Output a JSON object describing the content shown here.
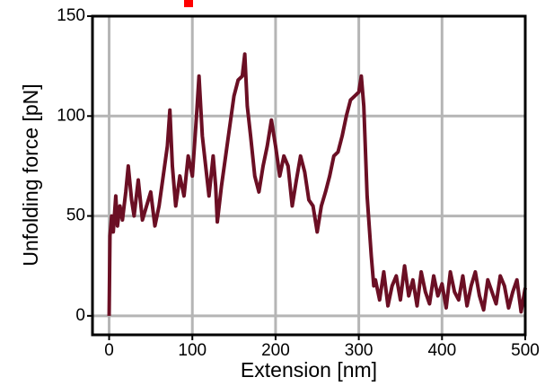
{
  "chart_data": {
    "type": "line",
    "xlabel": "Extension [nm]",
    "ylabel": "Unfolding force [pN]",
    "x": [
      0,
      1,
      3,
      5,
      8,
      10,
      13,
      16,
      20,
      23,
      27,
      30,
      35,
      40,
      45,
      50,
      55,
      60,
      65,
      70,
      73,
      76,
      80,
      85,
      90,
      95,
      100,
      105,
      108,
      112,
      116,
      120,
      125,
      128,
      130,
      135,
      140,
      145,
      150,
      155,
      160,
      163,
      166,
      170,
      175,
      180,
      185,
      190,
      195,
      200,
      205,
      210,
      215,
      220,
      225,
      230,
      235,
      240,
      245,
      250,
      255,
      260,
      265,
      270,
      275,
      280,
      285,
      290,
      295,
      300,
      303,
      306,
      310,
      315,
      318,
      320,
      325,
      330,
      335,
      340,
      345,
      350,
      355,
      360,
      365,
      370,
      375,
      380,
      385,
      390,
      395,
      400,
      405,
      410,
      415,
      420,
      425,
      430,
      435,
      440,
      445,
      450,
      455,
      460,
      465,
      470,
      475,
      480,
      485,
      490,
      495,
      500
    ],
    "y": [
      0,
      40,
      50,
      42,
      60,
      45,
      55,
      48,
      62,
      75,
      58,
      50,
      68,
      48,
      55,
      62,
      45,
      55,
      70,
      85,
      103,
      75,
      55,
      70,
      60,
      80,
      70,
      100,
      120,
      90,
      75,
      60,
      80,
      65,
      47,
      65,
      80,
      95,
      110,
      118,
      120,
      131,
      105,
      90,
      70,
      62,
      75,
      85,
      98,
      85,
      70,
      80,
      75,
      55,
      68,
      80,
      72,
      58,
      55,
      42,
      55,
      62,
      70,
      80,
      82,
      90,
      100,
      108,
      110,
      112,
      120,
      105,
      60,
      30,
      15,
      18,
      8,
      22,
      5,
      15,
      20,
      8,
      25,
      10,
      18,
      5,
      22,
      12,
      6,
      20,
      10,
      16,
      4,
      22,
      12,
      8,
      20,
      5,
      15,
      22,
      10,
      3,
      18,
      12,
      6,
      20,
      15,
      4,
      12,
      18,
      2,
      14
    ],
    "color": "#6b0f24",
    "xlim": [
      -20,
      500
    ],
    "ylim": [
      -9.5,
      150
    ],
    "xticks": [
      0,
      100,
      200,
      300,
      400,
      500
    ],
    "yticks": [
      0,
      50,
      100,
      150
    ],
    "grid": true
  }
}
